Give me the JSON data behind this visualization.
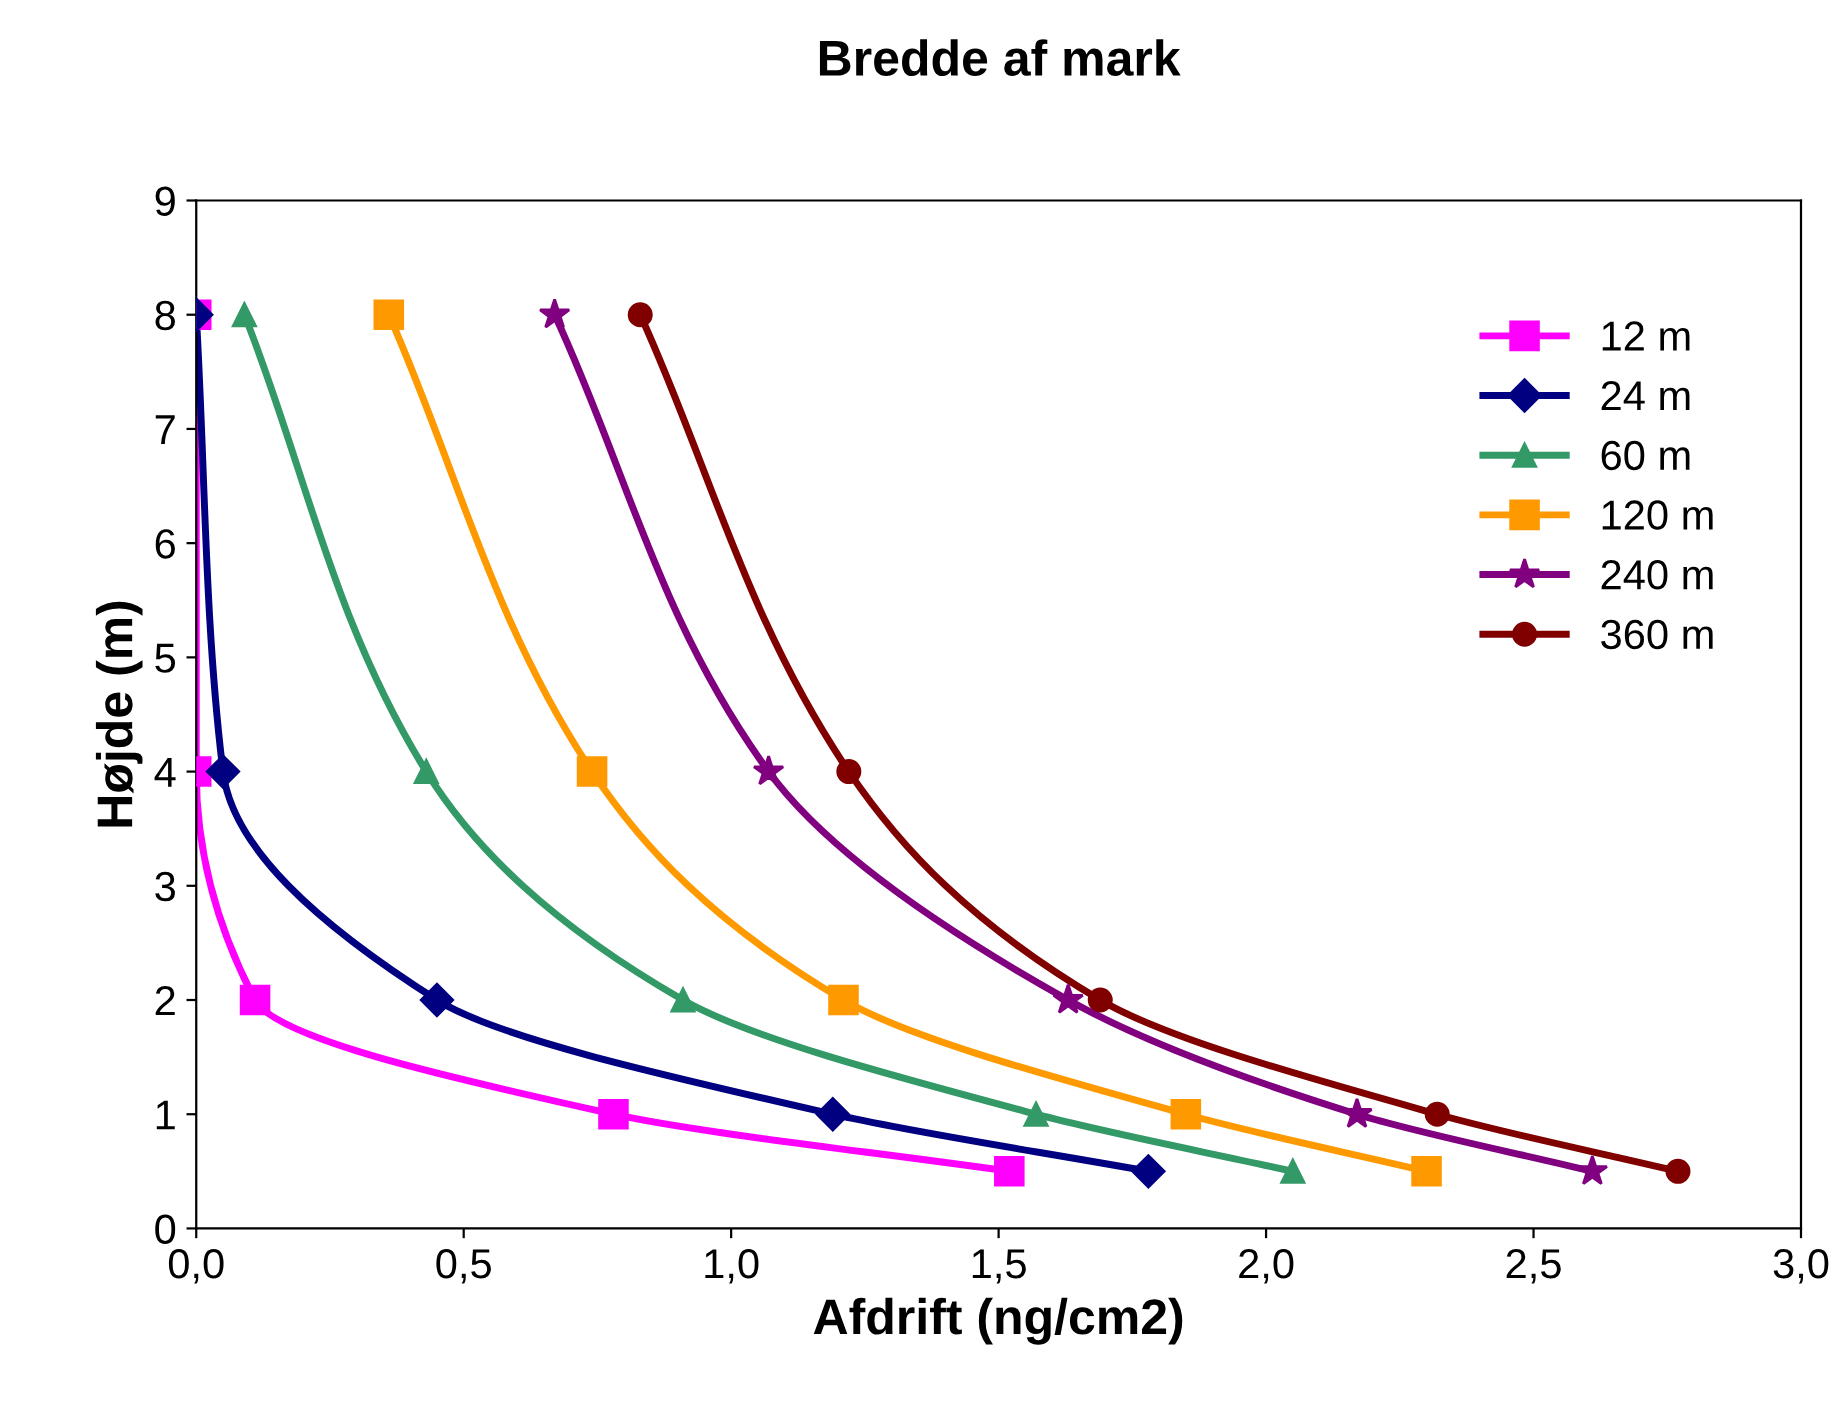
{
  "chart_data": {
    "type": "line",
    "title": "Bredde af mark",
    "xlabel": "Afdrift (ng/cm2)",
    "ylabel": "Højde (m)",
    "xlim": [
      0,
      3
    ],
    "ylim": [
      0,
      9
    ],
    "xticks": [
      {
        "value": 0,
        "label": "0,0"
      },
      {
        "value": 0.5,
        "label": "0,5"
      },
      {
        "value": 1,
        "label": "1,0"
      },
      {
        "value": 1.5,
        "label": "1,5"
      },
      {
        "value": 2,
        "label": "2,0"
      },
      {
        "value": 2.5,
        "label": "2,5"
      },
      {
        "value": 3,
        "label": "3,0"
      }
    ],
    "yticks": [
      0,
      1,
      2,
      3,
      4,
      5,
      6,
      7,
      8,
      9
    ],
    "grid": false,
    "legend": "top right",
    "line_style": "solid",
    "series": [
      {
        "name": "12 m",
        "color": "#ff00ff",
        "marker": "square",
        "x": [
          0.0,
          0.0,
          0.11,
          0.78,
          1.52
        ],
        "values": [
          8,
          4,
          2,
          1,
          0.5
        ]
      },
      {
        "name": "24 m",
        "color": "#000080",
        "marker": "diamond",
        "x": [
          0.0,
          0.05,
          0.45,
          1.19,
          1.78
        ],
        "values": [
          8,
          4,
          2,
          1,
          0.5
        ]
      },
      {
        "name": "60 m",
        "color": "#339966",
        "marker": "triangle",
        "x": [
          0.09,
          0.43,
          0.91,
          1.57,
          2.05
        ],
        "values": [
          8,
          4,
          2,
          1,
          0.5
        ]
      },
      {
        "name": "120 m",
        "color": "#ff9900",
        "marker": "square",
        "x": [
          0.36,
          0.74,
          1.21,
          1.85,
          2.3
        ],
        "values": [
          8,
          4,
          2,
          1,
          0.5
        ]
      },
      {
        "name": "240 m",
        "color": "#800080",
        "marker": "star",
        "x": [
          0.67,
          1.07,
          1.63,
          2.17,
          2.61
        ],
        "values": [
          8,
          4,
          2,
          1,
          0.5
        ]
      },
      {
        "name": "360 m",
        "color": "#800000",
        "marker": "circle",
        "x": [
          0.83,
          1.22,
          1.69,
          2.32,
          2.77
        ],
        "values": [
          8,
          4,
          2,
          1,
          0.5
        ]
      }
    ]
  }
}
